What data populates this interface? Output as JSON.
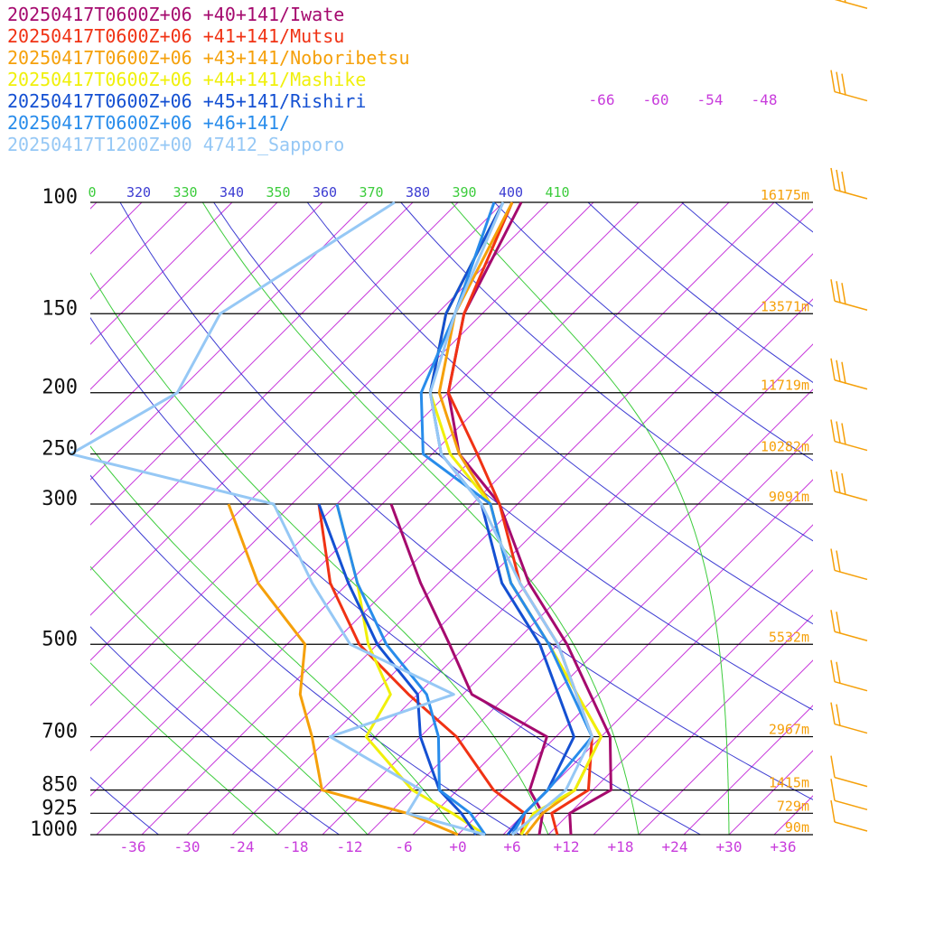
{
  "chart_data": {
    "type": "skew-t log-p sounding",
    "legend": [
      {
        "label": "20250417T0600Z+06 +40+141/Iwate",
        "color": "#a50a6e"
      },
      {
        "label": "20250417T0600Z+06 +41+141/Mutsu",
        "color": "#f03214"
      },
      {
        "label": "20250417T0600Z+06 +43+141/Noboribetsu",
        "color": "#f5a00a"
      },
      {
        "label": "20250417T0600Z+06 +44+141/Mashike",
        "color": "#f0f00a"
      },
      {
        "label": "20250417T0600Z+06 +45+141/Rishiri",
        "color": "#1450d2"
      },
      {
        "label": "20250417T0600Z+06 +46+141/",
        "color": "#288ceb"
      },
      {
        "label": "20250417T1200Z+00 47412_Sapporo",
        "color": "#96c8f5"
      }
    ],
    "pressure_levels": [
      {
        "p": 100,
        "label": "100",
        "height": "16175m"
      },
      {
        "p": 150,
        "label": "150",
        "height": "13571m"
      },
      {
        "p": 200,
        "label": "200",
        "height": "11719m"
      },
      {
        "p": 250,
        "label": "250",
        "height": "10282m"
      },
      {
        "p": 300,
        "label": "300",
        "height": "9091m"
      },
      {
        "p": 500,
        "label": "500",
        "height": "5532m"
      },
      {
        "p": 700,
        "label": "700",
        "height": "2967m"
      },
      {
        "p": 850,
        "label": "850",
        "height": "1415m"
      },
      {
        "p": 925,
        "label": "925",
        "height": "729m"
      },
      {
        "p": 1000,
        "label": "1000",
        "height": "90m"
      }
    ],
    "x_ticks": [
      "-36",
      "-30",
      "-24",
      "-18",
      "-12",
      "-6",
      "+0",
      "+6",
      "+12",
      "+18",
      "+24",
      "+30",
      "+36"
    ],
    "x_tick_values": [
      -36,
      -30,
      -24,
      -18,
      -12,
      -6,
      0,
      6,
      12,
      18,
      24,
      30,
      36
    ],
    "isotherm_labels_top": [
      "-66",
      "-60",
      "-54",
      "-48"
    ],
    "theta_labels": [
      {
        "text": "0",
        "color": "#3ccc3c"
      },
      {
        "text": "320",
        "color": "#3c3cd2"
      },
      {
        "text": "330",
        "color": "#3ccc3c"
      },
      {
        "text": "340",
        "color": "#3c3cd2"
      },
      {
        "text": "350",
        "color": "#3ccc3c"
      },
      {
        "text": "360",
        "color": "#3c3cd2"
      },
      {
        "text": "370",
        "color": "#3ccc3c"
      },
      {
        "text": "380",
        "color": "#3c3cd2"
      },
      {
        "text": "390",
        "color": "#3ccc3c"
      },
      {
        "text": "400",
        "color": "#3c3cd2"
      },
      {
        "text": "410",
        "color": "#3ccc3c"
      }
    ],
    "series": [
      {
        "name": "20250417T0600Z+06 +40+141/Iwate",
        "color": "#a50a6e",
        "temperature": [
          [
            1000,
            12.5
          ],
          [
            925,
            10
          ],
          [
            850,
            12
          ],
          [
            700,
            6
          ],
          [
            500,
            -9
          ],
          [
            400,
            -20
          ],
          [
            300,
            -32
          ],
          [
            250,
            -42
          ],
          [
            200,
            -50
          ],
          [
            150,
            -57
          ],
          [
            100,
            -63
          ]
        ],
        "dewpoint": [
          [
            1000,
            9
          ],
          [
            925,
            7
          ],
          [
            850,
            3
          ],
          [
            700,
            -1
          ],
          [
            600,
            -14
          ],
          [
            500,
            -22
          ],
          [
            400,
            -32
          ],
          [
            300,
            -44
          ]
        ]
      },
      {
        "name": "20250417T0600Z+06 +41+141/Mutsu",
        "color": "#f03214",
        "temperature": [
          [
            1000,
            11
          ],
          [
            925,
            8
          ],
          [
            850,
            9.5
          ],
          [
            700,
            4
          ],
          [
            500,
            -10
          ],
          [
            400,
            -21
          ],
          [
            300,
            -32
          ],
          [
            250,
            -40
          ],
          [
            200,
            -50
          ],
          [
            150,
            -57
          ],
          [
            100,
            -64
          ]
        ],
        "dewpoint": [
          [
            1000,
            7
          ],
          [
            925,
            5
          ],
          [
            850,
            -1
          ],
          [
            700,
            -11
          ],
          [
            600,
            -21
          ],
          [
            500,
            -32
          ],
          [
            400,
            -42
          ],
          [
            300,
            -52
          ]
        ]
      },
      {
        "name": "20250417T0600Z+06 +43+141/Noboribetsu",
        "color": "#f5a00a",
        "temperature": [
          [
            1000,
            7.5
          ],
          [
            925,
            7
          ],
          [
            850,
            8
          ],
          [
            700,
            5
          ],
          [
            500,
            -11
          ],
          [
            400,
            -22
          ],
          [
            300,
            -33
          ],
          [
            250,
            -42
          ],
          [
            200,
            -51
          ],
          [
            150,
            -58
          ],
          [
            100,
            -64
          ]
        ],
        "dewpoint": [
          [
            1000,
            0
          ],
          [
            925,
            -8
          ],
          [
            850,
            -20
          ],
          [
            700,
            -27
          ],
          [
            600,
            -33
          ],
          [
            500,
            -38
          ],
          [
            400,
            -50
          ],
          [
            300,
            -62
          ]
        ]
      },
      {
        "name": "20250417T0600Z+06 +44+141/Mashike",
        "color": "#f0f00a",
        "temperature": [
          [
            1000,
            7
          ],
          [
            925,
            6
          ],
          [
            850,
            8
          ],
          [
            700,
            5
          ],
          [
            500,
            -11
          ],
          [
            400,
            -22
          ],
          [
            300,
            -33
          ],
          [
            250,
            -43
          ],
          [
            200,
            -52
          ],
          [
            150,
            -59
          ],
          [
            100,
            -65
          ]
        ],
        "dewpoint": [
          [
            1000,
            3
          ],
          [
            925,
            -3
          ],
          [
            850,
            -10
          ],
          [
            700,
            -21
          ],
          [
            600,
            -23
          ],
          [
            500,
            -31
          ],
          [
            400,
            -39
          ],
          [
            300,
            -50
          ]
        ]
      },
      {
        "name": "20250417T0600Z+06 +45+141/Rishiri",
        "color": "#1450d2",
        "temperature": [
          [
            1000,
            5.5
          ],
          [
            925,
            5
          ],
          [
            850,
            5
          ],
          [
            700,
            2
          ],
          [
            500,
            -12
          ],
          [
            400,
            -23
          ],
          [
            300,
            -34
          ],
          [
            250,
            -44
          ],
          [
            200,
            -52
          ],
          [
            150,
            -59
          ],
          [
            100,
            -65
          ]
        ],
        "dewpoint": [
          [
            1000,
            2
          ],
          [
            925,
            -2
          ],
          [
            850,
            -7
          ],
          [
            700,
            -15
          ],
          [
            600,
            -20
          ],
          [
            500,
            -30
          ],
          [
            400,
            -40
          ],
          [
            300,
            -52
          ]
        ]
      },
      {
        "name": "20250417T0600Z+06 +46+141/",
        "color": "#288ceb",
        "temperature": [
          [
            1000,
            6
          ],
          [
            925,
            5
          ],
          [
            850,
            5
          ],
          [
            700,
            4
          ],
          [
            500,
            -11
          ],
          [
            400,
            -22
          ],
          [
            300,
            -33
          ],
          [
            250,
            -46
          ],
          [
            200,
            -53
          ],
          [
            150,
            -58
          ],
          [
            100,
            -66
          ]
        ],
        "dewpoint": [
          [
            1000,
            3
          ],
          [
            925,
            -1
          ],
          [
            850,
            -7
          ],
          [
            700,
            -13
          ],
          [
            600,
            -19
          ],
          [
            500,
            -29
          ],
          [
            400,
            -39
          ],
          [
            300,
            -50
          ]
        ]
      },
      {
        "name": "20250417T1200Z+00 47412_Sapporo",
        "color": "#96c8f5",
        "temperature": [
          [
            1000,
            6
          ],
          [
            925,
            6.5
          ],
          [
            850,
            7
          ],
          [
            700,
            4
          ],
          [
            500,
            -10
          ],
          [
            400,
            -21
          ],
          [
            300,
            -34
          ],
          [
            250,
            -44
          ],
          [
            200,
            -52
          ],
          [
            150,
            -58
          ],
          [
            100,
            -65
          ]
        ],
        "dewpoint": [
          [
            1000,
            3
          ],
          [
            925,
            -8
          ],
          [
            850,
            -9
          ],
          [
            700,
            -25
          ],
          [
            600,
            -16
          ],
          [
            500,
            -33
          ],
          [
            400,
            -44
          ],
          [
            300,
            -57
          ],
          [
            250,
            -85
          ],
          [
            200,
            -80
          ],
          [
            150,
            -84
          ],
          [
            100,
            -77
          ]
        ]
      }
    ],
    "wind_barbs": {
      "color": "#f5a00a",
      "levels": [
        1000,
        925,
        850,
        700,
        600,
        500,
        400,
        300,
        250,
        200,
        150,
        100,
        70,
        50
      ]
    }
  }
}
